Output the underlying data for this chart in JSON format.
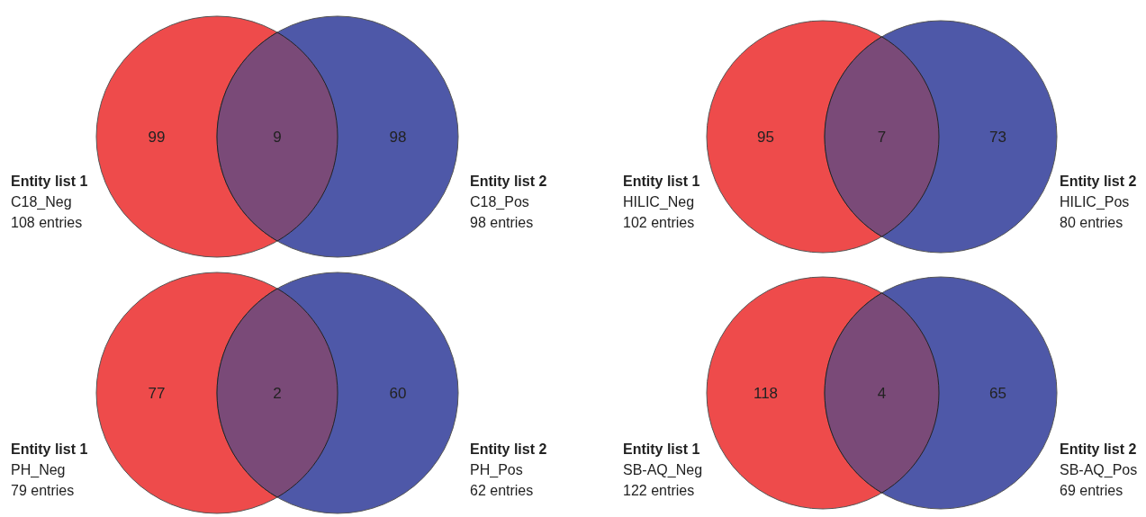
{
  "chart_data": [
    {
      "type": "other",
      "data_labels": true,
      "categories": [
        null,
        null,
        null
      ],
      "values": [
        99,
        9,
        98
      ],
      "colors": [
        "#ee4b4b",
        "#7a4a78",
        "#4e58a8"
      ],
      "annotations": [
        "Entity list 1",
        "C18_Neg",
        "108 entries",
        "Entity list 2",
        "C18_Pos",
        "98 entries"
      ]
    },
    {
      "type": "other",
      "data_labels": true,
      "categories": [
        null,
        null,
        null
      ],
      "values": [
        95,
        7,
        73
      ],
      "colors": [
        "#ee4b4b",
        "#7a4a78",
        "#4e58a8"
      ],
      "annotations": [
        "Entity list 1",
        "HILIC_Neg",
        "102 entries",
        "Entity list 2",
        "HILIC_Pos",
        "80 entries"
      ]
    },
    {
      "type": "other",
      "data_labels": true,
      "categories": [
        null,
        null,
        null
      ],
      "values": [
        77,
        2,
        60
      ],
      "colors": [
        "#ee4b4b",
        "#7a4a78",
        "#4e58a8"
      ],
      "annotations": [
        "Entity list 1",
        "PH_Neg",
        "79 entries",
        "Entity list 2",
        "PH_Pos",
        "62 entries"
      ]
    },
    {
      "type": "other",
      "data_labels": true,
      "categories": [
        null,
        null,
        null
      ],
      "values": [
        118,
        4,
        65
      ],
      "colors": [
        "#ee4b4b",
        "#7a4a78",
        "#4e58a8"
      ],
      "annotations": [
        "Entity list 1",
        "SB-AQ_Neg",
        "122 entries",
        "Entity list 2",
        "SB-AQ_Pos",
        "69 entries"
      ]
    }
  ]
}
